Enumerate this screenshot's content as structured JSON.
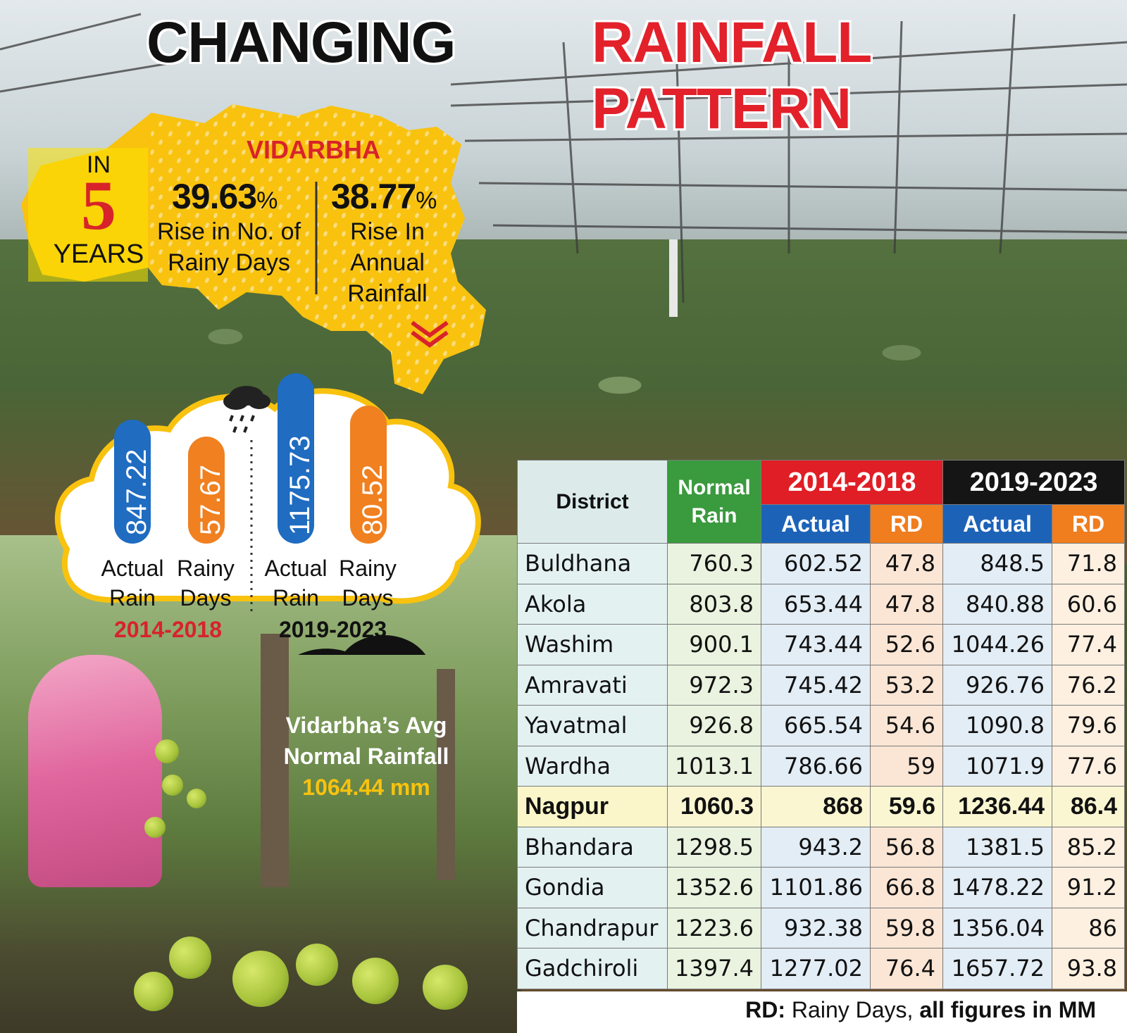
{
  "title": {
    "part1": "CHANGING",
    "part2": "RAINFALL PATTERN"
  },
  "map": {
    "region": "VIDARBHA",
    "in": "IN",
    "years_number": "5",
    "years": "YEARS",
    "stat1": {
      "value": "39.63",
      "unit": "%",
      "line1": "Rise in No. of",
      "line2": "Rainy Days"
    },
    "stat2": {
      "value": "38.77",
      "unit": "%",
      "line1": "Rise In",
      "line2": "Annual",
      "line3": "Rainfall"
    }
  },
  "bars": {
    "period1": "2014-2018",
    "period2": "2019-2023",
    "items": [
      {
        "value": "847.22",
        "cap1": "Actual",
        "cap2": "Rain",
        "color": "#1f6cc1"
      },
      {
        "value": "57.67",
        "cap1": "Rainy",
        "cap2": "Days",
        "color": "#f08020"
      },
      {
        "value": "1175.73",
        "cap1": "Actual",
        "cap2": "Rain",
        "color": "#1f6cc1"
      },
      {
        "value": "80.52",
        "cap1": "Rainy",
        "cap2": "Days",
        "color": "#f08020"
      }
    ]
  },
  "avg_cloud": {
    "line1": "Vidarbha’s Avg",
    "line2": "Normal Rainfall",
    "value": "1064.44 mm"
  },
  "table": {
    "h_district": "District",
    "h_normal1": "Normal",
    "h_normal2": "Rain",
    "h_period1": "2014-2018",
    "h_period2": "2019-2023",
    "h_actual": "Actual",
    "h_rd": "RD",
    "rows": [
      {
        "district": "Buldhana",
        "normal": "760.3",
        "a1": "602.52",
        "r1": "47.8",
        "a2": "848.5",
        "r2": "71.8"
      },
      {
        "district": "Akola",
        "normal": "803.8",
        "a1": "653.44",
        "r1": "47.8",
        "a2": "840.88",
        "r2": "60.6"
      },
      {
        "district": "Washim",
        "normal": "900.1",
        "a1": "743.44",
        "r1": "52.6",
        "a2": "1044.26",
        "r2": "77.4"
      },
      {
        "district": "Amravati",
        "normal": "972.3",
        "a1": "745.42",
        "r1": "53.2",
        "a2": "926.76",
        "r2": "76.2"
      },
      {
        "district": "Yavatmal",
        "normal": "926.8",
        "a1": "665.54",
        "r1": "54.6",
        "a2": "1090.8",
        "r2": "79.6"
      },
      {
        "district": "Wardha",
        "normal": "1013.1",
        "a1": "786.66",
        "r1": "59",
        "a2": "1071.9",
        "r2": "77.6"
      },
      {
        "district": "Nagpur",
        "normal": "1060.3",
        "a1": "868",
        "r1": "59.6",
        "a2": "1236.44",
        "r2": "86.4"
      },
      {
        "district": "Bhandara",
        "normal": "1298.5",
        "a1": "943.2",
        "r1": "56.8",
        "a2": "1381.5",
        "r2": "85.2"
      },
      {
        "district": "Gondia",
        "normal": "1352.6",
        "a1": "1101.86",
        "r1": "66.8",
        "a2": "1478.22",
        "r2": "91.2"
      },
      {
        "district": "Chandrapur",
        "normal": "1223.6",
        "a1": "932.38",
        "r1": "59.8",
        "a2": "1356.04",
        "r2": "86"
      },
      {
        "district": "Gadchiroli",
        "normal": "1397.4",
        "a1": "1277.02",
        "r1": "76.4",
        "a2": "1657.72",
        "r2": "93.8"
      }
    ],
    "footnote_key": "RD:",
    "footnote_text": " Rainy Days,",
    "footnote_bold": "all figures in MM"
  },
  "colors": {
    "accent_red": "#e01e26",
    "map_yellow": "#f8c20f",
    "green": "#3a9a3e",
    "blue": "#1c63b8",
    "orange": "#f07d1e"
  }
}
